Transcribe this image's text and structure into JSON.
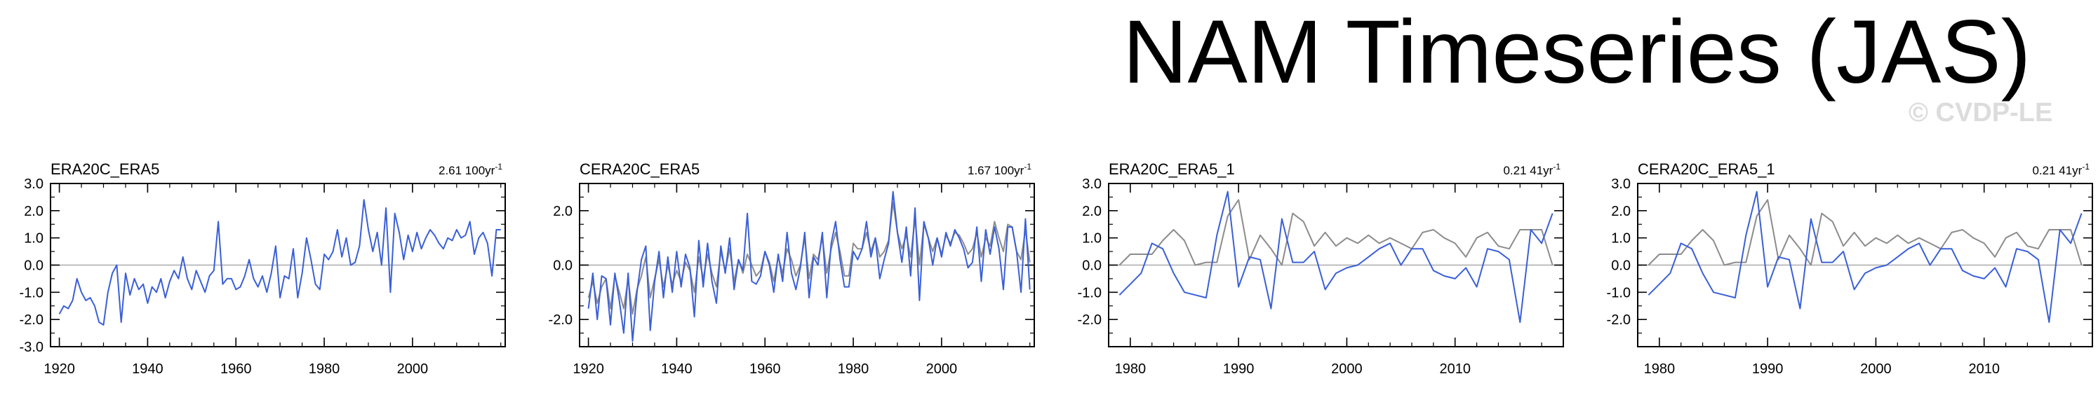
{
  "title": "NAM Timeseries (JAS)",
  "watermark": "© CVDP-LE",
  "colors": {
    "series_blue": "#3a5fd8",
    "series_gray": "#8c8c8c",
    "zero_line": "#aaaaaa",
    "frame": "#000000"
  },
  "chart_data": [
    {
      "type": "line",
      "title": "ERA20C_ERA5",
      "trend_value": "2.61",
      "trend_unit": "100yr",
      "xlim": [
        1918,
        2021
      ],
      "ylim": [
        -3.0,
        3.0
      ],
      "xticks": [
        1920,
        1940,
        1960,
        1980,
        2000
      ],
      "yticks": [
        -3.0,
        -2.0,
        -1.0,
        0.0,
        1.0,
        2.0,
        3.0
      ],
      "ytick_labels": [
        "-3.0",
        "-2.0",
        "-1.0",
        "0.0",
        "1.0",
        "2.0",
        "3.0"
      ],
      "series": [
        {
          "color": "#3a5fd8",
          "x": [
            1920,
            1921,
            1922,
            1923,
            1924,
            1925,
            1926,
            1927,
            1928,
            1929,
            1930,
            1931,
            1932,
            1933,
            1934,
            1935,
            1936,
            1937,
            1938,
            1939,
            1940,
            1941,
            1942,
            1943,
            1944,
            1945,
            1946,
            1947,
            1948,
            1949,
            1950,
            1951,
            1952,
            1953,
            1954,
            1955,
            1956,
            1957,
            1958,
            1959,
            1960,
            1961,
            1962,
            1963,
            1964,
            1965,
            1966,
            1967,
            1968,
            1969,
            1970,
            1971,
            1972,
            1973,
            1974,
            1975,
            1976,
            1977,
            1978,
            1979,
            1980,
            1981,
            1982,
            1983,
            1984,
            1985,
            1986,
            1987,
            1988,
            1989,
            1990,
            1991,
            1992,
            1993,
            1994,
            1995,
            1996,
            1997,
            1998,
            1999,
            2000,
            2001,
            2002,
            2003,
            2004,
            2005,
            2006,
            2007,
            2008,
            2009,
            2010,
            2011,
            2012,
            2013,
            2014,
            2015,
            2016,
            2017,
            2018,
            2019,
            2020
          ],
          "values": [
            -1.8,
            -1.5,
            -1.6,
            -1.3,
            -0.5,
            -1.0,
            -1.3,
            -1.2,
            -1.5,
            -2.1,
            -2.2,
            -1.0,
            -0.3,
            0.0,
            -2.1,
            -0.3,
            -1.1,
            -0.5,
            -0.9,
            -0.7,
            -1.4,
            -0.8,
            -1.0,
            -0.5,
            -1.2,
            -0.6,
            -0.2,
            -0.5,
            0.3,
            -0.5,
            -0.9,
            -0.2,
            -0.6,
            -1.0,
            -0.4,
            -0.2,
            1.6,
            -0.7,
            -0.5,
            -0.5,
            -0.9,
            -0.8,
            -0.4,
            0.2,
            -0.5,
            -0.8,
            -0.4,
            -1.0,
            -0.3,
            0.7,
            -1.2,
            -0.4,
            -0.5,
            0.6,
            -1.2,
            -0.3,
            1.0,
            0.2,
            -0.7,
            -0.9,
            0.4,
            0.2,
            0.5,
            1.3,
            0.3,
            1.0,
            0.0,
            0.1,
            0.7,
            2.4,
            1.3,
            0.5,
            1.2,
            0.0,
            2.1,
            -1.0,
            1.9,
            1.2,
            0.2,
            1.1,
            0.5,
            1.2,
            0.6,
            1.0,
            1.3,
            1.1,
            0.8,
            0.6,
            1.0,
            0.9,
            1.3,
            1.0,
            1.1,
            1.6,
            0.4,
            1.0,
            1.2,
            0.8,
            -0.4,
            1.3,
            1.3
          ]
        }
      ]
    },
    {
      "type": "line",
      "title": "CERA20C_ERA5",
      "trend_value": "1.67",
      "trend_unit": "100yr",
      "xlim": [
        1918,
        2021
      ],
      "ylim": [
        -3.0,
        3.0
      ],
      "xticks": [
        1920,
        1940,
        1960,
        1980,
        2000
      ],
      "yticks": [
        -2.0,
        0.0,
        2.0
      ],
      "ytick_labels": [
        "-2.0",
        "0.0",
        "2.0"
      ],
      "series": [
        {
          "color": "#8c8c8c",
          "x": [
            1920,
            1921,
            1922,
            1923,
            1924,
            1925,
            1926,
            1927,
            1928,
            1929,
            1930,
            1931,
            1932,
            1933,
            1934,
            1935,
            1936,
            1937,
            1938,
            1939,
            1940,
            1941,
            1942,
            1943,
            1944,
            1945,
            1946,
            1947,
            1948,
            1949,
            1950,
            1951,
            1952,
            1953,
            1954,
            1955,
            1956,
            1957,
            1958,
            1959,
            1960,
            1961,
            1962,
            1963,
            1964,
            1965,
            1966,
            1967,
            1968,
            1969,
            1970,
            1971,
            1972,
            1973,
            1974,
            1975,
            1976,
            1977,
            1978,
            1979,
            1980,
            1981,
            1982,
            1983,
            1984,
            1985,
            1986,
            1987,
            1988,
            1989,
            1990,
            1991,
            1992,
            1993,
            1994,
            1995,
            1996,
            1997,
            1998,
            1999,
            2000,
            2001,
            2002,
            2003,
            2004,
            2005,
            2006,
            2007,
            2008,
            2009,
            2010,
            2011,
            2012,
            2013,
            2014,
            2015,
            2016,
            2017,
            2018,
            2019,
            2020
          ],
          "values": [
            -1.2,
            -0.6,
            -1.4,
            -0.8,
            -0.5,
            -1.6,
            -0.4,
            -1.0,
            -1.6,
            -0.5,
            -1.8,
            -0.9,
            -0.4,
            0.3,
            -1.2,
            -0.5,
            0.2,
            -0.8,
            0.0,
            -0.7,
            -0.2,
            -0.6,
            0.1,
            -0.2,
            -1.0,
            0.3,
            -0.5,
            0.4,
            -0.3,
            -0.8,
            0.5,
            -0.2,
            0.6,
            -0.6,
            0.2,
            -0.3,
            0.4,
            0.0,
            -0.4,
            -0.2,
            0.5,
            0.1,
            -0.6,
            0.3,
            -0.3,
            0.6,
            0.2,
            -0.4,
            0.0,
            1.0,
            -0.5,
            0.4,
            0.2,
            1.0,
            -0.3,
            0.6,
            1.2,
            0.5,
            -0.4,
            -0.4,
            0.8,
            0.6,
            0.6,
            1.2,
            0.5,
            1.0,
            0.3,
            0.5,
            0.9,
            2.3,
            1.2,
            0.6,
            1.1,
            0.3,
            1.7,
            0.0,
            1.5,
            1.0,
            0.5,
            1.0,
            0.4,
            1.1,
            0.8,
            1.2,
            1.1,
            0.8,
            0.4,
            0.6,
            1.2,
            0.3,
            1.0,
            0.7,
            1.6,
            1.0,
            0.5,
            1.5,
            1.4,
            0.5,
            0.2,
            1.3,
            0.1
          ]
        },
        {
          "color": "#3a5fd8",
          "x": [
            1920,
            1921,
            1922,
            1923,
            1924,
            1925,
            1926,
            1927,
            1928,
            1929,
            1930,
            1931,
            1932,
            1933,
            1934,
            1935,
            1936,
            1937,
            1938,
            1939,
            1940,
            1941,
            1942,
            1943,
            1944,
            1945,
            1946,
            1947,
            1948,
            1949,
            1950,
            1951,
            1952,
            1953,
            1954,
            1955,
            1956,
            1957,
            1958,
            1959,
            1960,
            1961,
            1962,
            1963,
            1964,
            1965,
            1966,
            1967,
            1968,
            1969,
            1970,
            1971,
            1972,
            1973,
            1974,
            1975,
            1976,
            1977,
            1978,
            1979,
            1980,
            1981,
            1982,
            1983,
            1984,
            1985,
            1986,
            1987,
            1988,
            1989,
            1990,
            1991,
            1992,
            1993,
            1994,
            1995,
            1996,
            1997,
            1998,
            1999,
            2000,
            2001,
            2002,
            2003,
            2004,
            2005,
            2006,
            2007,
            2008,
            2009,
            2010,
            2011,
            2012,
            2013,
            2014,
            2015,
            2016,
            2017,
            2018,
            2019,
            2020
          ],
          "values": [
            -1.6,
            -0.3,
            -2.0,
            -0.4,
            -0.5,
            -2.2,
            -0.3,
            -1.3,
            -2.5,
            -0.3,
            -2.8,
            -1.0,
            0.2,
            0.7,
            -2.4,
            -0.6,
            0.5,
            -1.2,
            0.3,
            -1.0,
            0.5,
            -0.8,
            0.4,
            -0.1,
            -1.9,
            0.9,
            -0.8,
            0.8,
            -0.6,
            -1.4,
            0.7,
            -0.3,
            1.0,
            -0.9,
            0.2,
            -0.2,
            1.9,
            -0.6,
            -0.7,
            -0.4,
            0.5,
            0.0,
            -1.0,
            0.4,
            -0.6,
            1.2,
            -0.3,
            -0.9,
            -0.1,
            1.2,
            -1.2,
            0.3,
            0.0,
            1.2,
            -1.2,
            0.8,
            1.6,
            0.2,
            -0.8,
            -0.8,
            0.5,
            0.2,
            0.6,
            1.6,
            0.3,
            1.0,
            -0.5,
            0.2,
            0.8,
            2.7,
            1.2,
            0.1,
            1.4,
            -0.4,
            2.1,
            -1.3,
            1.6,
            1.0,
            0.0,
            1.0,
            0.3,
            1.2,
            0.7,
            1.3,
            1.0,
            0.6,
            -0.1,
            0.1,
            1.4,
            -0.6,
            1.3,
            0.4,
            1.4,
            0.6,
            -0.9,
            1.4,
            1.4,
            0.5,
            -1.0,
            1.7,
            -0.9
          ]
        }
      ]
    },
    {
      "type": "line",
      "title": "ERA20C_ERA5_1",
      "trend_value": "0.21",
      "trend_unit": "41yr",
      "xlim": [
        1978,
        2020
      ],
      "ylim": [
        -3.0,
        3.0
      ],
      "xticks": [
        1980,
        1990,
        2000,
        2010
      ],
      "yticks": [
        -2.0,
        -1.0,
        0.0,
        1.0,
        2.0,
        3.0
      ],
      "ytick_labels": [
        "-2.0",
        "-1.0",
        "0.0",
        "1.0",
        "2.0",
        "3.0"
      ],
      "series": [
        {
          "color": "#8c8c8c",
          "x": [
            1979,
            1980,
            1981,
            1982,
            1983,
            1984,
            1985,
            1986,
            1987,
            1988,
            1989,
            1990,
            1991,
            1992,
            1993,
            1994,
            1995,
            1996,
            1997,
            1998,
            1999,
            2000,
            2001,
            2002,
            2003,
            2004,
            2005,
            2006,
            2007,
            2008,
            2009,
            2010,
            2011,
            2012,
            2013,
            2014,
            2015,
            2016,
            2017,
            2018,
            2019
          ],
          "values": [
            0.0,
            0.4,
            0.4,
            0.4,
            0.9,
            1.3,
            0.9,
            0.0,
            0.1,
            0.1,
            1.8,
            2.4,
            0.2,
            1.1,
            0.6,
            0.0,
            1.9,
            1.6,
            0.7,
            1.2,
            0.7,
            1.0,
            0.8,
            1.1,
            0.8,
            1.0,
            0.8,
            0.6,
            1.2,
            1.3,
            1.0,
            0.8,
            0.3,
            1.0,
            1.2,
            0.7,
            0.6,
            1.3,
            1.3,
            1.3,
            0.0
          ]
        },
        {
          "color": "#3a5fd8",
          "x": [
            1979,
            1980,
            1981,
            1982,
            1983,
            1984,
            1985,
            1986,
            1987,
            1988,
            1989,
            1990,
            1991,
            1992,
            1993,
            1994,
            1995,
            1996,
            1997,
            1998,
            1999,
            2000,
            2001,
            2002,
            2003,
            2004,
            2005,
            2006,
            2007,
            2008,
            2009,
            2010,
            2011,
            2012,
            2013,
            2014,
            2015,
            2016,
            2017,
            2018,
            2019
          ],
          "values": [
            -1.1,
            -0.7,
            -0.3,
            0.8,
            0.6,
            -0.3,
            -1.0,
            -1.1,
            -1.2,
            1.1,
            2.7,
            -0.8,
            0.3,
            0.2,
            -1.6,
            1.7,
            0.1,
            0.1,
            0.5,
            -0.9,
            -0.3,
            -0.1,
            0.0,
            0.3,
            0.6,
            0.8,
            0.0,
            0.6,
            0.6,
            -0.2,
            -0.4,
            -0.5,
            -0.1,
            -0.8,
            0.6,
            0.5,
            0.2,
            -2.1,
            1.3,
            0.8,
            1.9
          ]
        }
      ]
    },
    {
      "type": "line",
      "title": "CERA20C_ERA5_1",
      "trend_value": "0.21",
      "trend_unit": "41yr",
      "xlim": [
        1978,
        2020
      ],
      "ylim": [
        -3.0,
        3.0
      ],
      "xticks": [
        1980,
        1990,
        2000,
        2010
      ],
      "yticks": [
        -2.0,
        -1.0,
        0.0,
        1.0,
        2.0,
        3.0
      ],
      "ytick_labels": [
        "-2.0",
        "-1.0",
        "0.0",
        "1.0",
        "2.0",
        "3.0"
      ],
      "series": [
        {
          "color": "#8c8c8c",
          "x": [
            1979,
            1980,
            1981,
            1982,
            1983,
            1984,
            1985,
            1986,
            1987,
            1988,
            1989,
            1990,
            1991,
            1992,
            1993,
            1994,
            1995,
            1996,
            1997,
            1998,
            1999,
            2000,
            2001,
            2002,
            2003,
            2004,
            2005,
            2006,
            2007,
            2008,
            2009,
            2010,
            2011,
            2012,
            2013,
            2014,
            2015,
            2016,
            2017,
            2018,
            2019
          ],
          "values": [
            0.0,
            0.4,
            0.4,
            0.4,
            0.9,
            1.3,
            0.9,
            0.0,
            0.1,
            0.1,
            1.8,
            2.4,
            0.2,
            1.1,
            0.6,
            0.0,
            1.9,
            1.6,
            0.7,
            1.2,
            0.7,
            1.0,
            0.8,
            1.1,
            0.8,
            1.0,
            0.8,
            0.6,
            1.2,
            1.3,
            1.0,
            0.8,
            0.3,
            1.0,
            1.2,
            0.7,
            0.6,
            1.3,
            1.3,
            1.3,
            0.0
          ]
        },
        {
          "color": "#3a5fd8",
          "x": [
            1979,
            1980,
            1981,
            1982,
            1983,
            1984,
            1985,
            1986,
            1987,
            1988,
            1989,
            1990,
            1991,
            1992,
            1993,
            1994,
            1995,
            1996,
            1997,
            1998,
            1999,
            2000,
            2001,
            2002,
            2003,
            2004,
            2005,
            2006,
            2007,
            2008,
            2009,
            2010,
            2011,
            2012,
            2013,
            2014,
            2015,
            2016,
            2017,
            2018,
            2019
          ],
          "values": [
            -1.1,
            -0.7,
            -0.3,
            0.8,
            0.6,
            -0.3,
            -1.0,
            -1.1,
            -1.2,
            1.1,
            2.7,
            -0.8,
            0.3,
            0.2,
            -1.6,
            1.7,
            0.1,
            0.1,
            0.5,
            -0.9,
            -0.3,
            -0.1,
            0.0,
            0.3,
            0.6,
            0.8,
            0.0,
            0.6,
            0.6,
            -0.2,
            -0.4,
            -0.5,
            -0.1,
            -0.8,
            0.6,
            0.5,
            0.2,
            -2.1,
            1.3,
            0.8,
            1.9
          ]
        }
      ]
    }
  ]
}
